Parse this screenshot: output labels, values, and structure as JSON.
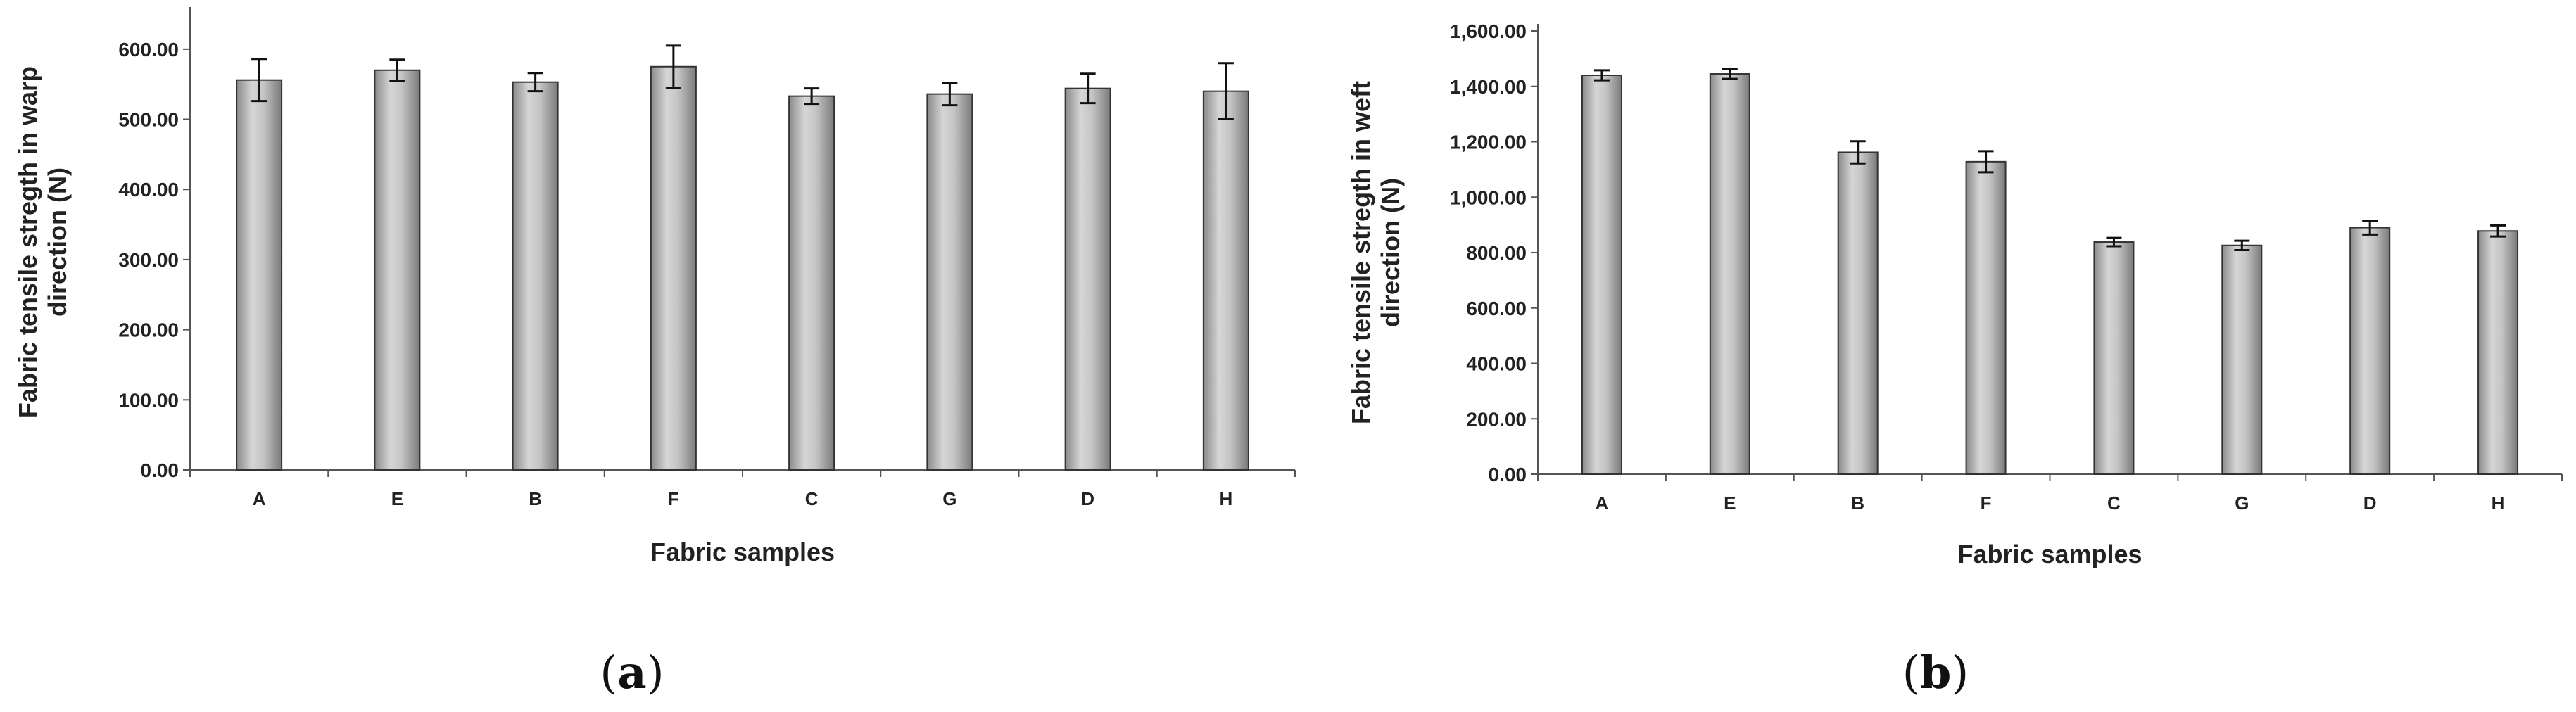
{
  "chart_data": [
    {
      "type": "bar",
      "panel_label": "a",
      "categories": [
        "A",
        "E",
        "B",
        "F",
        "C",
        "G",
        "D",
        "H"
      ],
      "values": [
        556,
        570,
        553,
        575,
        533,
        536,
        544,
        540
      ],
      "errors": [
        30,
        15,
        13,
        30,
        11,
        16,
        21,
        40
      ],
      "xlabel": "Fabric samples",
      "ylabel": [
        "Fabric tensile stregth in warp",
        "direction (N)"
      ],
      "ylim": [
        0,
        650
      ],
      "yticks": [
        "0.00",
        "100.00",
        "200.00",
        "300.00",
        "400.00",
        "500.00",
        "600.00"
      ],
      "bar_color": "#b4b4b4",
      "grid": false,
      "legend": "none"
    },
    {
      "type": "bar",
      "panel_label": "b",
      "categories": [
        "A",
        "E",
        "B",
        "F",
        "C",
        "G",
        "D",
        "H"
      ],
      "values": [
        1440,
        1445,
        1162,
        1128,
        838,
        826,
        890,
        878
      ],
      "errors": [
        18,
        18,
        40,
        38,
        15,
        17,
        25,
        20
      ],
      "xlabel": "Fabric samples",
      "ylabel": [
        "Fabric tensile stregth in weft",
        "direction (N)"
      ],
      "ylim": [
        0,
        1600
      ],
      "yticks": [
        "0.00",
        "200.00",
        "400.00",
        "600.00",
        "800.00",
        "1,000.00",
        "1,200.00",
        "1,400.00",
        "1,600.00"
      ],
      "bar_color": "#b4b4b4",
      "grid": false,
      "legend": "none"
    }
  ]
}
